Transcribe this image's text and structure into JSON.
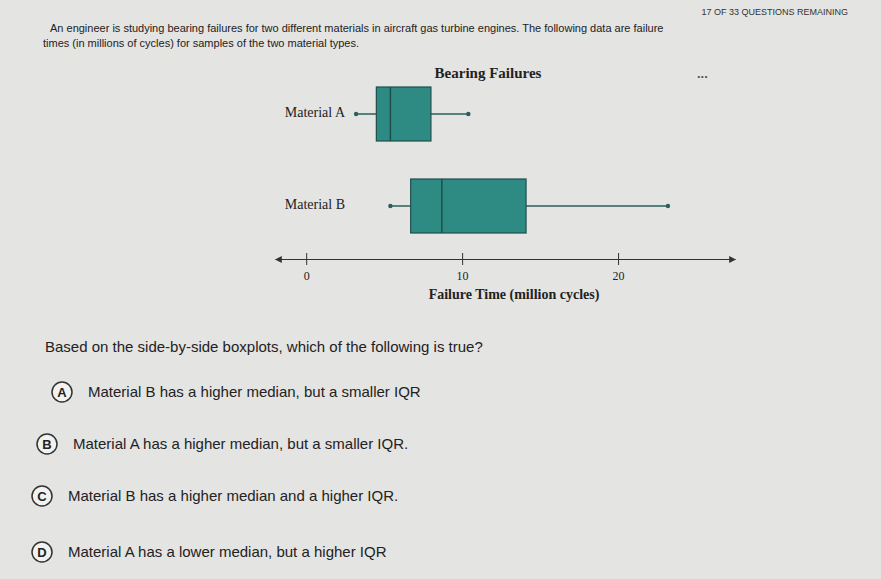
{
  "header": {
    "progress": "17 OF 33 QUESTIONS REMAINING",
    "menu": "..."
  },
  "intro": [
    "An engineer is studying bearing failures for two different materials in aircraft gas turbine engines. The following data are failure",
    "times (in millions of cycles) for samples of the two material types."
  ],
  "chart_data": {
    "type": "boxplot",
    "title": "Bearing Failures",
    "orientation": "horizontal",
    "categories": [
      "Material A",
      "Material B"
    ],
    "min": [
      3.2,
      5.4
    ],
    "q1": [
      4.5,
      6.7
    ],
    "median": [
      5.4,
      8.7
    ],
    "q3": [
      8.0,
      14.1
    ],
    "max": [
      10.4,
      23.2
    ],
    "x_label": "Failure Time (million cycles)",
    "xlim": [
      -2,
      27.5
    ],
    "xticks": [
      0,
      10,
      20
    ],
    "color": "#2e8b84"
  },
  "question": "Based on the side-by-side boxplots, which of the following is true?",
  "options": [
    {
      "letter": "A",
      "text": "Material B has a higher median, but a smaller IQR"
    },
    {
      "letter": "B",
      "text": "Material A has a higher median, but a smaller IQR."
    },
    {
      "letter": "C",
      "text": "Material B has a higher median and a higher IQR."
    },
    {
      "letter": "D",
      "text": "Material A has a lower median, but a higher IQR"
    }
  ]
}
